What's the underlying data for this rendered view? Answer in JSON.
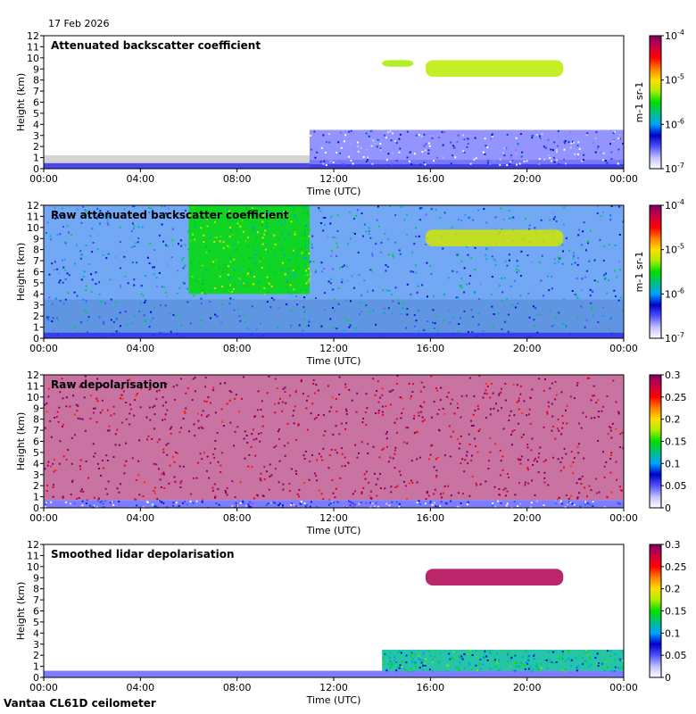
{
  "date": "17 Feb 2026",
  "footer": "Vantaa CL61D ceilometer",
  "colors": {
    "ramp": [
      "#ffffff",
      "#c0c0ff",
      "#5050ff",
      "#0000cc",
      "#00a0ff",
      "#00c080",
      "#00dd00",
      "#aaee00",
      "#ffdd00",
      "#ff8000",
      "#ff0000",
      "#cc0044",
      "#800060"
    ],
    "low_signal_grey": "#d4d4d4",
    "clear_sky": "#ffffff"
  },
  "chart_data": [
    {
      "type": "heatmap",
      "title": "Attenuated backscatter coefficient",
      "xlabel": "Time (UTC)",
      "ylabel": "Height (km)",
      "x_ticks": [
        "00:00",
        "04:00",
        "08:00",
        "12:00",
        "16:00",
        "20:00",
        "00:00"
      ],
      "x_range_hours": [
        0,
        24
      ],
      "y_ticks": [
        0,
        1,
        2,
        3,
        4,
        5,
        6,
        7,
        8,
        9,
        10,
        11,
        12
      ],
      "ylim_km": [
        0,
        12
      ],
      "colorbar": {
        "scale": "log",
        "ticks": [
          "10-7",
          "10-6",
          "10-5",
          "10-4"
        ],
        "unit": "m-1 sr-1"
      },
      "features": [
        {
          "name": "boundary layer (strong)",
          "t": [
            0,
            11
          ],
          "h": [
            0.0,
            0.5
          ],
          "level": 0.2
        },
        {
          "name": "boundary layer (strong)",
          "t": [
            11,
            24
          ],
          "h": [
            0.0,
            0.8
          ],
          "level": 0.22
        },
        {
          "name": "aerosol layer",
          "t": [
            11,
            24
          ],
          "h": [
            0.4,
            3.5
          ],
          "level": 0.13
        },
        {
          "name": "cirrus cloud",
          "t": [
            15.8,
            21.5
          ],
          "h": [
            8.3,
            9.8
          ],
          "level": 0.6
        },
        {
          "name": "cirrus fragment",
          "t": [
            14,
            15.3
          ],
          "h": [
            9.2,
            9.8
          ],
          "level": 0.58
        }
      ]
    },
    {
      "type": "heatmap",
      "title": "Raw attenuated backscatter coefficient",
      "xlabel": "Time (UTC)",
      "ylabel": "Height (km)",
      "x_ticks": [
        "00:00",
        "04:00",
        "08:00",
        "12:00",
        "16:00",
        "20:00",
        "00:00"
      ],
      "x_range_hours": [
        0,
        24
      ],
      "y_ticks": [
        0,
        1,
        2,
        3,
        4,
        5,
        6,
        7,
        8,
        9,
        10,
        11,
        12
      ],
      "ylim_km": [
        0,
        12
      ],
      "colorbar": {
        "scale": "log",
        "ticks": [
          "10-7",
          "10-6",
          "10-5",
          "10-4"
        ],
        "unit": "m-1 sr-1"
      },
      "features": [
        {
          "name": "noise background",
          "t": [
            0,
            24
          ],
          "h": [
            0,
            12
          ],
          "level": 0.3
        },
        {
          "name": "boundary layer (strong)",
          "t": [
            0,
            24
          ],
          "h": [
            0.0,
            0.5
          ],
          "level": 0.2
        },
        {
          "name": "enhanced signal",
          "t": [
            6,
            11
          ],
          "h": [
            4,
            12
          ],
          "level": 0.5
        },
        {
          "name": "cirrus cloud",
          "t": [
            15.8,
            21.5
          ],
          "h": [
            8.3,
            9.8
          ],
          "level": 0.62
        }
      ]
    },
    {
      "type": "heatmap",
      "title": "Raw depolarisation",
      "xlabel": "Time (UTC)",
      "ylabel": "Height (km)",
      "x_ticks": [
        "00:00",
        "04:00",
        "08:00",
        "12:00",
        "16:00",
        "20:00",
        "00:00"
      ],
      "x_range_hours": [
        0,
        24
      ],
      "y_ticks": [
        0,
        1,
        2,
        3,
        4,
        5,
        6,
        7,
        8,
        9,
        10,
        11,
        12
      ],
      "ylim_km": [
        0,
        12
      ],
      "colorbar": {
        "scale": "linear",
        "ticks": [
          "0",
          "0.05",
          "0.1",
          "0.15",
          "0.2",
          "0.25",
          "0.3"
        ]
      },
      "features": [
        {
          "name": "noise",
          "t": [
            0,
            24
          ],
          "h": [
            0.7,
            12
          ],
          "level": 0.97
        },
        {
          "name": "low-level aerosol",
          "t": [
            0,
            24
          ],
          "h": [
            0.0,
            0.7
          ],
          "level": 0.15
        }
      ]
    },
    {
      "type": "heatmap",
      "title": "Smoothed lidar depolarisation",
      "xlabel": "Time (UTC)",
      "ylabel": "Height (km)",
      "x_ticks": [
        "00:00",
        "04:00",
        "08:00",
        "12:00",
        "16:00",
        "20:00",
        "00:00"
      ],
      "x_range_hours": [
        0,
        24
      ],
      "y_ticks": [
        0,
        1,
        2,
        3,
        4,
        5,
        6,
        7,
        8,
        9,
        10,
        11,
        12
      ],
      "ylim_km": [
        0,
        12
      ],
      "colorbar": {
        "scale": "linear",
        "ticks": [
          "0",
          "0.05",
          "0.1",
          "0.15",
          "0.2",
          "0.25",
          "0.3"
        ]
      },
      "features": [
        {
          "name": "boundary layer",
          "t": [
            0,
            24
          ],
          "h": [
            0.0,
            0.6
          ],
          "level": 0.15
        },
        {
          "name": "aerosol layer",
          "t": [
            14,
            24
          ],
          "h": [
            0.6,
            2.5
          ],
          "level": 0.4
        },
        {
          "name": "cirrus cloud",
          "t": [
            15.8,
            21.5
          ],
          "h": [
            8.3,
            9.8
          ],
          "level": 0.95
        }
      ]
    }
  ]
}
